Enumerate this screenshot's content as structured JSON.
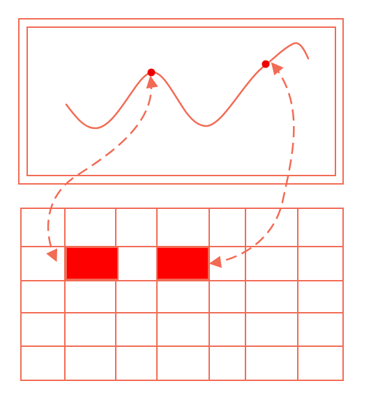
{
  "colors": {
    "line": "#f26b55",
    "fill": "#ff0000",
    "point": "#ee0000",
    "background": "#ffffff"
  },
  "waveform": {
    "markers": 2
  },
  "grid": {
    "rows": 5,
    "columns": 7,
    "highlighted_cells": [
      {
        "row": 2,
        "col": 2
      },
      {
        "row": 2,
        "col": 4
      }
    ]
  },
  "connectors": [
    {
      "from": "peak-1",
      "to": "cell-r2-c2",
      "style": "dashed-arrow"
    },
    {
      "from": "peak-2",
      "to": "cell-r2-c4",
      "style": "dashed-arrow"
    }
  ]
}
